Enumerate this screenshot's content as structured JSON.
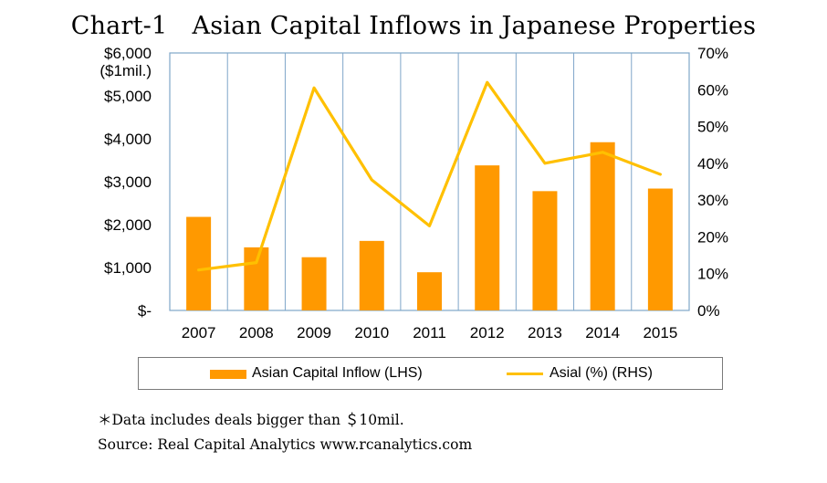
{
  "title": "Chart-1　Asian Capital Inflows in Japanese Properties",
  "chart_data": {
    "type": "bar",
    "categories": [
      "2007",
      "2008",
      "2009",
      "2010",
      "2011",
      "2012",
      "2013",
      "2014",
      "2015"
    ],
    "series": [
      {
        "name": "Asian Capital Inflow (LHS)",
        "type": "bar",
        "axis": "left",
        "color": "#ff9900",
        "values": [
          2180,
          1470,
          1240,
          1620,
          890,
          3380,
          2780,
          3920,
          2840
        ]
      },
      {
        "name": "Asial (%) (RHS)",
        "type": "line",
        "axis": "right",
        "color": "#ffc000",
        "values": [
          11,
          13,
          60.5,
          35.5,
          23,
          62,
          40,
          43,
          37
        ]
      }
    ],
    "left_axis": {
      "unit_label": "($1mil.)",
      "ylim": [
        0,
        6000
      ],
      "tick_values": [
        0,
        1000,
        2000,
        3000,
        4000,
        5000,
        6000
      ],
      "tick_labels": [
        "$-",
        "$1,000",
        "$2,000",
        "$3,000",
        "$4,000",
        "$5,000",
        "$6,000"
      ]
    },
    "right_axis": {
      "ylim": [
        0,
        70
      ],
      "tick_values": [
        0,
        10,
        20,
        30,
        40,
        50,
        60,
        70
      ],
      "tick_labels": [
        "0%",
        "10%",
        "20%",
        "30%",
        "40%",
        "50%",
        "60%",
        "70%"
      ]
    },
    "grid": "vertical",
    "legend_position": "bottom",
    "frame_color": "#7fa6c9",
    "notes": [
      "＊Data includes deals bigger than ＄10mil.",
      "Source: Real Capital Analytics www.rcanalytics.com"
    ]
  }
}
